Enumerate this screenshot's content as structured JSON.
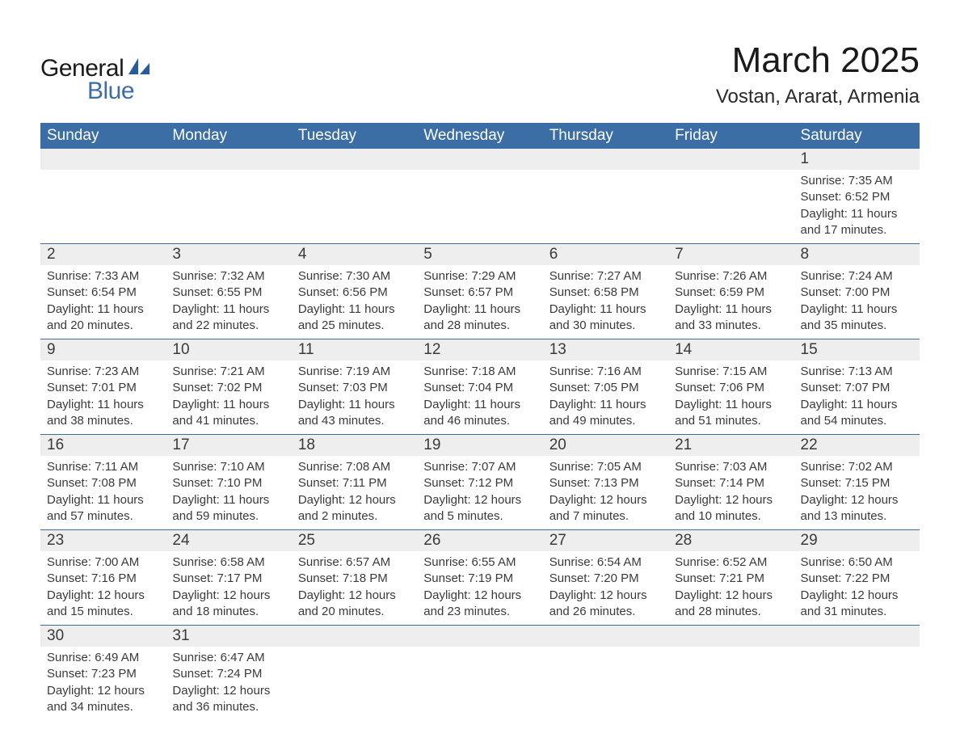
{
  "brand": {
    "text_general": "General",
    "text_blue": "Blue",
    "sail_color": "#2a5a9a",
    "text_general_color": "#1a1a1a",
    "text_blue_color": "#3a6ea5"
  },
  "title": {
    "month": "March 2025",
    "location": "Vostan, Ararat, Armenia",
    "month_fontsize": 44,
    "location_fontsize": 24
  },
  "table": {
    "header_bg": "#3a6ea5",
    "header_fg": "#ffffff",
    "daynum_bg": "#eeeeee",
    "border_color": "#3a6ea5",
    "detail_fontsize": 15,
    "daynum_fontsize": 19,
    "header_fontsize": 19
  },
  "day_headers": [
    "Sunday",
    "Monday",
    "Tuesday",
    "Wednesday",
    "Thursday",
    "Friday",
    "Saturday"
  ],
  "weeks": [
    [
      null,
      null,
      null,
      null,
      null,
      null,
      {
        "n": "1",
        "sunrise": "7:35 AM",
        "sunset": "6:52 PM",
        "dl1": "11 hours",
        "dl2": "and 17 minutes."
      }
    ],
    [
      {
        "n": "2",
        "sunrise": "7:33 AM",
        "sunset": "6:54 PM",
        "dl1": "11 hours",
        "dl2": "and 20 minutes."
      },
      {
        "n": "3",
        "sunrise": "7:32 AM",
        "sunset": "6:55 PM",
        "dl1": "11 hours",
        "dl2": "and 22 minutes."
      },
      {
        "n": "4",
        "sunrise": "7:30 AM",
        "sunset": "6:56 PM",
        "dl1": "11 hours",
        "dl2": "and 25 minutes."
      },
      {
        "n": "5",
        "sunrise": "7:29 AM",
        "sunset": "6:57 PM",
        "dl1": "11 hours",
        "dl2": "and 28 minutes."
      },
      {
        "n": "6",
        "sunrise": "7:27 AM",
        "sunset": "6:58 PM",
        "dl1": "11 hours",
        "dl2": "and 30 minutes."
      },
      {
        "n": "7",
        "sunrise": "7:26 AM",
        "sunset": "6:59 PM",
        "dl1": "11 hours",
        "dl2": "and 33 minutes."
      },
      {
        "n": "8",
        "sunrise": "7:24 AM",
        "sunset": "7:00 PM",
        "dl1": "11 hours",
        "dl2": "and 35 minutes."
      }
    ],
    [
      {
        "n": "9",
        "sunrise": "7:23 AM",
        "sunset": "7:01 PM",
        "dl1": "11 hours",
        "dl2": "and 38 minutes."
      },
      {
        "n": "10",
        "sunrise": "7:21 AM",
        "sunset": "7:02 PM",
        "dl1": "11 hours",
        "dl2": "and 41 minutes."
      },
      {
        "n": "11",
        "sunrise": "7:19 AM",
        "sunset": "7:03 PM",
        "dl1": "11 hours",
        "dl2": "and 43 minutes."
      },
      {
        "n": "12",
        "sunrise": "7:18 AM",
        "sunset": "7:04 PM",
        "dl1": "11 hours",
        "dl2": "and 46 minutes."
      },
      {
        "n": "13",
        "sunrise": "7:16 AM",
        "sunset": "7:05 PM",
        "dl1": "11 hours",
        "dl2": "and 49 minutes."
      },
      {
        "n": "14",
        "sunrise": "7:15 AM",
        "sunset": "7:06 PM",
        "dl1": "11 hours",
        "dl2": "and 51 minutes."
      },
      {
        "n": "15",
        "sunrise": "7:13 AM",
        "sunset": "7:07 PM",
        "dl1": "11 hours",
        "dl2": "and 54 minutes."
      }
    ],
    [
      {
        "n": "16",
        "sunrise": "7:11 AM",
        "sunset": "7:08 PM",
        "dl1": "11 hours",
        "dl2": "and 57 minutes."
      },
      {
        "n": "17",
        "sunrise": "7:10 AM",
        "sunset": "7:10 PM",
        "dl1": "11 hours",
        "dl2": "and 59 minutes."
      },
      {
        "n": "18",
        "sunrise": "7:08 AM",
        "sunset": "7:11 PM",
        "dl1": "12 hours",
        "dl2": "and 2 minutes."
      },
      {
        "n": "19",
        "sunrise": "7:07 AM",
        "sunset": "7:12 PM",
        "dl1": "12 hours",
        "dl2": "and 5 minutes."
      },
      {
        "n": "20",
        "sunrise": "7:05 AM",
        "sunset": "7:13 PM",
        "dl1": "12 hours",
        "dl2": "and 7 minutes."
      },
      {
        "n": "21",
        "sunrise": "7:03 AM",
        "sunset": "7:14 PM",
        "dl1": "12 hours",
        "dl2": "and 10 minutes."
      },
      {
        "n": "22",
        "sunrise": "7:02 AM",
        "sunset": "7:15 PM",
        "dl1": "12 hours",
        "dl2": "and 13 minutes."
      }
    ],
    [
      {
        "n": "23",
        "sunrise": "7:00 AM",
        "sunset": "7:16 PM",
        "dl1": "12 hours",
        "dl2": "and 15 minutes."
      },
      {
        "n": "24",
        "sunrise": "6:58 AM",
        "sunset": "7:17 PM",
        "dl1": "12 hours",
        "dl2": "and 18 minutes."
      },
      {
        "n": "25",
        "sunrise": "6:57 AM",
        "sunset": "7:18 PM",
        "dl1": "12 hours",
        "dl2": "and 20 minutes."
      },
      {
        "n": "26",
        "sunrise": "6:55 AM",
        "sunset": "7:19 PM",
        "dl1": "12 hours",
        "dl2": "and 23 minutes."
      },
      {
        "n": "27",
        "sunrise": "6:54 AM",
        "sunset": "7:20 PM",
        "dl1": "12 hours",
        "dl2": "and 26 minutes."
      },
      {
        "n": "28",
        "sunrise": "6:52 AM",
        "sunset": "7:21 PM",
        "dl1": "12 hours",
        "dl2": "and 28 minutes."
      },
      {
        "n": "29",
        "sunrise": "6:50 AM",
        "sunset": "7:22 PM",
        "dl1": "12 hours",
        "dl2": "and 31 minutes."
      }
    ],
    [
      {
        "n": "30",
        "sunrise": "6:49 AM",
        "sunset": "7:23 PM",
        "dl1": "12 hours",
        "dl2": "and 34 minutes."
      },
      {
        "n": "31",
        "sunrise": "6:47 AM",
        "sunset": "7:24 PM",
        "dl1": "12 hours",
        "dl2": "and 36 minutes."
      },
      null,
      null,
      null,
      null,
      null
    ]
  ],
  "labels": {
    "sunrise_prefix": "Sunrise: ",
    "sunset_prefix": "Sunset: ",
    "daylight_prefix": "Daylight: "
  }
}
